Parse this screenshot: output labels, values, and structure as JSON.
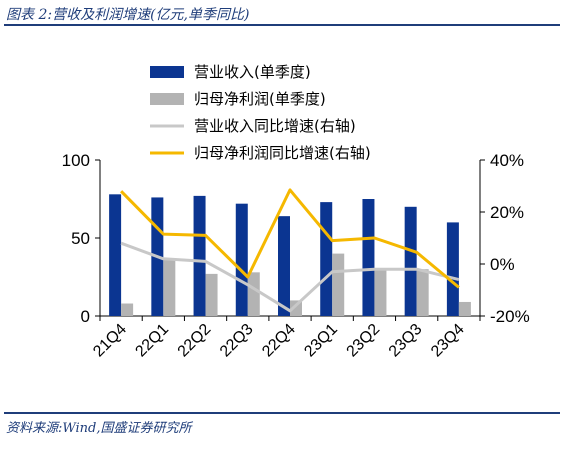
{
  "header": {
    "title": "图表 2:营收及利润增速(亿元,单季同比)"
  },
  "footer": {
    "source": "资料来源:Wind,国盛证券研究所"
  },
  "colors": {
    "revenue": "#0b3591",
    "profit": "#b3b3b3",
    "revenue_yoy": "#c8c8c8",
    "profit_yoy": "#f5b800"
  },
  "chart_data": {
    "type": "bar",
    "categories": [
      "21Q4",
      "22Q1",
      "22Q2",
      "22Q3",
      "22Q4",
      "23Q1",
      "23Q2",
      "23Q3",
      "23Q4"
    ],
    "series": [
      {
        "name": "营业收入(单季度)",
        "type": "bar",
        "axis": "left",
        "values": [
          78,
          76,
          77,
          72,
          64,
          73,
          75,
          70,
          60
        ]
      },
      {
        "name": "归母净利润(单季度)",
        "type": "bar",
        "axis": "left",
        "values": [
          8,
          36,
          27,
          28,
          10,
          40,
          30,
          30,
          9
        ]
      },
      {
        "name": "营业收入同比增速(右轴)",
        "type": "line",
        "axis": "right",
        "values": [
          0.08,
          0.02,
          0.01,
          -0.08,
          -0.18,
          -0.03,
          -0.02,
          -0.02,
          -0.06
        ]
      },
      {
        "name": "归母净利润同比增速(右轴)",
        "type": "line",
        "axis": "right",
        "values": [
          0.28,
          0.115,
          0.11,
          -0.05,
          0.285,
          0.09,
          0.1,
          0.045,
          -0.09
        ]
      }
    ],
    "y_left": {
      "min": 0,
      "max": 100,
      "ticks": [
        0,
        50,
        100
      ],
      "tick_labels": [
        "0",
        "50",
        "100"
      ]
    },
    "y_right": {
      "min": -0.2,
      "max": 0.4,
      "ticks": [
        -0.2,
        0,
        0.2,
        0.4
      ],
      "tick_labels": [
        "-20%",
        "0%",
        "20%",
        "40%"
      ]
    },
    "legend": {
      "position": "top-center"
    },
    "grid": false
  }
}
